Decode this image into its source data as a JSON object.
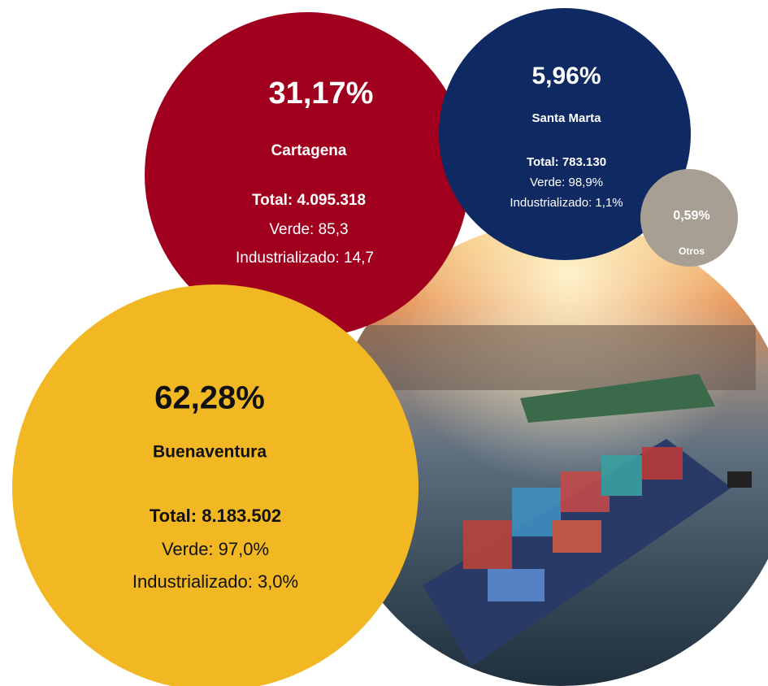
{
  "bubbles": [
    {
      "percent": "31,17%",
      "name": "Cartagena",
      "total": "Total: 4.095.318",
      "verde": "Verde: 85,3",
      "industrializado": "Industrializado: 14,7"
    },
    {
      "percent": "5,96%",
      "name": "Santa Marta",
      "total": "Total: 783.130",
      "verde": "Verde: 98,9%",
      "industrializado": "Industrializado: 1,1%"
    },
    {
      "percent": "0,59%",
      "name": "Otros"
    },
    {
      "percent": "62,28%",
      "name": "Buenaventura",
      "total": "Total: 8.183.502",
      "verde": "Verde: 97,0%",
      "industrializado": "Industrializado: 3,0%"
    }
  ]
}
